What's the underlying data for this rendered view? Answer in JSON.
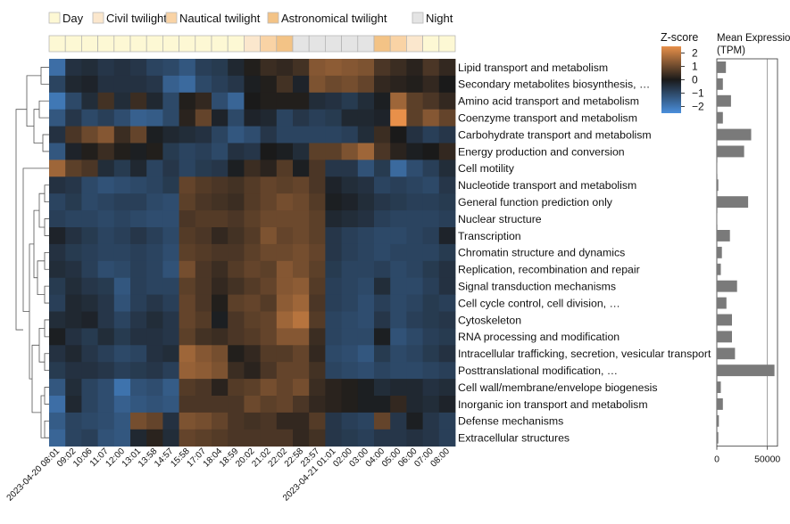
{
  "chart_data": {
    "type": "heatmap",
    "legend": {
      "items": [
        {
          "label": "Day",
          "color": "#fdf8d4"
        },
        {
          "label": "Civil twilight",
          "color": "#fbe7cd"
        },
        {
          "label": "Nautical twilight",
          "color": "#f9d3a5"
        },
        {
          "label": "Astronomical twilight",
          "color": "#f3c386"
        },
        {
          "label": "Night",
          "color": "#e4e4e4"
        }
      ]
    },
    "time_labels": [
      "2023-04-20 08:01",
      "09:02",
      "10:06",
      "11:07",
      "12:00",
      "13:01",
      "13:58",
      "14:57",
      "15:58",
      "17:07",
      "18:04",
      "18:59",
      "20:02",
      "21:02",
      "22:02",
      "22:58",
      "23:57",
      "2023-04-21 01:01",
      "02:00",
      "03:00",
      "04:00",
      "05:00",
      "06:00",
      "07:00",
      "08:00"
    ],
    "phases": [
      "Day",
      "Day",
      "Day",
      "Day",
      "Day",
      "Day",
      "Day",
      "Day",
      "Day",
      "Day",
      "Day",
      "Day",
      "Civil twilight",
      "Nautical twilight",
      "Astronomical twilight",
      "Night",
      "Night",
      "Night",
      "Night",
      "Night",
      "Astronomical twilight",
      "Nautical twilight",
      "Civil twilight",
      "Day",
      "Day"
    ],
    "categories": [
      "Lipid transport and metabolism",
      "Secondary metabolites biosynthesis, …",
      "Amino acid transport and metabolism",
      "Coenzyme transport and metabolism",
      "Carbohydrate transport and metabolism",
      "Energy production and conversion",
      "Cell motility",
      "Nucleotide transport and metabolism",
      "General function prediction only",
      "Nuclear structure",
      "Transcription",
      "Chromatin structure and dynamics",
      "Replication, recombination and repair",
      "Signal transduction mechanisms",
      "Cell cycle control, cell division, …",
      "Cytoskeleton",
      "RNA processing and modification",
      "Intracellular trafficking, secretion, vesicular transport",
      "Posttranslational modification, …",
      "Cell wall/membrane/envelope biogenesis",
      "Inorganic ion transport and metabolism",
      "Defense mechanisms",
      "Extracellular structures"
    ],
    "zscores": [
      [
        -1.8,
        -0.5,
        -0.4,
        -0.6,
        -0.5,
        -0.6,
        -0.9,
        -1.0,
        -1.3,
        -0.8,
        -0.7,
        -0.3,
        0.1,
        0.4,
        0.3,
        0.5,
        1.3,
        1.4,
        1.3,
        1.2,
        0.6,
        0.4,
        0.2,
        0.6,
        0.3
      ],
      [
        -0.9,
        -0.3,
        -0.2,
        -0.5,
        -0.5,
        -0.5,
        -0.6,
        -1.5,
        -1.7,
        -1.0,
        -0.8,
        -0.6,
        -0.1,
        0.1,
        0.5,
        -0.2,
        1.2,
        1.0,
        1.1,
        0.9,
        0.3,
        0.2,
        0.1,
        0.3,
        0.0
      ],
      [
        -2.0,
        -1.0,
        -0.4,
        0.5,
        -0.4,
        0.4,
        -0.3,
        -1.0,
        0.1,
        0.3,
        -1.1,
        -1.6,
        0.0,
        0.1,
        0.1,
        0.1,
        -0.4,
        -0.5,
        -0.7,
        -0.4,
        -0.1,
        1.6,
        0.8,
        0.6,
        0.3
      ],
      [
        -1.3,
        -0.6,
        -1.0,
        -0.8,
        -1.1,
        -1.5,
        -1.4,
        -1.0,
        0.2,
        0.9,
        -0.2,
        -1.0,
        -0.2,
        -0.3,
        -0.9,
        -0.6,
        -0.8,
        -0.7,
        -0.3,
        -0.3,
        -0.2,
        2.5,
        0.8,
        1.3,
        0.9
      ],
      [
        -0.5,
        0.6,
        1.0,
        1.3,
        0.4,
        0.9,
        -0.1,
        -0.3,
        -0.4,
        -0.5,
        -0.9,
        -1.3,
        -1.1,
        -0.6,
        -0.9,
        -0.9,
        -0.9,
        -0.9,
        -0.8,
        -0.4,
        0.4,
        0.0,
        -0.5,
        -0.8,
        -0.6
      ],
      [
        -1.3,
        -0.2,
        0.1,
        0.4,
        0.1,
        -0.1,
        0.1,
        -0.7,
        -0.9,
        -0.8,
        -1.0,
        -0.5,
        -0.6,
        0.0,
        -0.1,
        -0.4,
        0.8,
        0.8,
        1.2,
        1.6,
        0.6,
        0.2,
        -0.1,
        0.0,
        0.3
      ],
      [
        1.6,
        0.8,
        0.6,
        -0.4,
        -0.7,
        -0.3,
        -0.9,
        -0.6,
        -0.9,
        -0.7,
        -0.6,
        -0.1,
        0.4,
        0.2,
        0.7,
        -0.1,
        0.6,
        -0.6,
        -0.6,
        -1.2,
        -0.7,
        -1.7,
        -1.1,
        -0.8,
        -0.4
      ],
      [
        -0.5,
        -0.6,
        -1.0,
        -1.2,
        -1.1,
        -1.0,
        -0.9,
        -0.7,
        0.9,
        0.7,
        0.6,
        0.5,
        0.7,
        0.9,
        0.8,
        0.9,
        0.6,
        -0.2,
        -0.4,
        -0.5,
        -0.9,
        -0.8,
        -0.9,
        -1.0,
        -0.6
      ],
      [
        -0.9,
        -0.7,
        -1.0,
        -0.9,
        -0.8,
        -0.8,
        -1.0,
        -1.1,
        0.8,
        0.6,
        0.5,
        0.4,
        0.7,
        0.9,
        1.1,
        1.0,
        0.7,
        -0.1,
        -0.2,
        -0.4,
        -0.6,
        -0.7,
        -0.8,
        -0.8,
        -0.7
      ],
      [
        -0.8,
        -0.9,
        -0.9,
        -1.0,
        -0.9,
        -1.0,
        -1.1,
        -1.1,
        0.6,
        0.7,
        0.7,
        0.6,
        0.8,
        1.0,
        1.0,
        1.0,
        0.8,
        -0.3,
        -0.4,
        -0.5,
        -0.8,
        -0.9,
        -0.9,
        -0.9,
        -0.8
      ],
      [
        -0.2,
        -0.5,
        -0.7,
        -0.9,
        -0.8,
        -0.6,
        -0.8,
        -1.0,
        0.7,
        0.6,
        0.3,
        0.5,
        0.7,
        1.2,
        0.9,
        1.0,
        0.8,
        -0.6,
        -0.8,
        -0.9,
        -1.0,
        -1.0,
        -0.9,
        -0.8,
        -0.2
      ],
      [
        -0.5,
        -0.7,
        -0.8,
        -0.9,
        -0.9,
        -0.8,
        -0.9,
        -1.1,
        0.8,
        0.7,
        0.6,
        0.6,
        0.8,
        1.0,
        1.0,
        1.1,
        0.9,
        -0.6,
        -0.8,
        -0.9,
        -1.0,
        -0.9,
        -0.9,
        -0.9,
        -0.7
      ],
      [
        -0.4,
        -0.5,
        -0.8,
        -1.1,
        -1.0,
        -0.8,
        -0.9,
        -1.2,
        1.1,
        0.6,
        0.4,
        0.7,
        0.9,
        0.8,
        1.3,
        1.1,
        0.8,
        -0.7,
        -0.9,
        -0.9,
        -0.8,
        -1.0,
        -0.9,
        -0.7,
        -0.5
      ],
      [
        -0.7,
        -0.4,
        -0.6,
        -0.7,
        -1.3,
        -0.8,
        -0.9,
        -0.9,
        0.8,
        0.6,
        0.3,
        0.5,
        0.7,
        0.9,
        1.3,
        1.4,
        0.7,
        -0.8,
        -0.9,
        -1.0,
        -0.4,
        -1.0,
        -1.0,
        -0.8,
        -0.5
      ],
      [
        -0.8,
        -0.3,
        -0.4,
        -0.6,
        -1.2,
        -0.8,
        -0.6,
        -0.8,
        0.9,
        0.6,
        0.1,
        0.8,
        0.9,
        0.7,
        1.4,
        1.6,
        0.6,
        -0.8,
        -0.9,
        -1.1,
        -0.8,
        -1.0,
        -0.9,
        -0.7,
        -0.8
      ],
      [
        -0.4,
        -0.3,
        -0.2,
        -0.6,
        -0.9,
        -0.6,
        -0.4,
        -0.6,
        0.9,
        0.7,
        -0.1,
        0.6,
        0.8,
        0.9,
        1.6,
        1.9,
        0.7,
        -0.9,
        -1.0,
        -1.1,
        -0.6,
        -1.0,
        -0.8,
        -0.7,
        -0.6
      ],
      [
        -0.1,
        -0.5,
        -0.7,
        -0.4,
        -0.7,
        -0.5,
        -0.5,
        -0.6,
        0.8,
        0.5,
        0.4,
        0.6,
        0.7,
        0.9,
        1.3,
        1.3,
        0.4,
        -0.9,
        -1.0,
        -1.0,
        -0.1,
        -1.2,
        -1.0,
        -0.8,
        -0.7
      ],
      [
        -0.5,
        -0.3,
        -0.6,
        -0.8,
        -1.0,
        -0.9,
        -0.5,
        -0.4,
        1.6,
        1.3,
        1.1,
        0.1,
        0.3,
        0.7,
        0.7,
        0.9,
        0.3,
        -1.0,
        -1.1,
        -1.3,
        -0.7,
        -1.0,
        -0.9,
        -0.7,
        -0.5
      ],
      [
        -0.7,
        -0.5,
        -0.5,
        -0.6,
        -0.8,
        -0.7,
        -0.6,
        -0.8,
        1.5,
        1.4,
        1.2,
        0.4,
        0.2,
        0.6,
        0.9,
        0.9,
        0.5,
        -0.9,
        -1.0,
        -1.1,
        -0.9,
        -1.0,
        -1.0,
        -0.9,
        -0.8
      ],
      [
        -1.3,
        -0.4,
        -0.9,
        -1.1,
        -1.9,
        -1.2,
        -1.1,
        -1.4,
        0.7,
        0.6,
        0.2,
        0.7,
        0.8,
        1.1,
        0.9,
        1.1,
        0.4,
        0.2,
        0.1,
        -0.1,
        -0.4,
        -0.3,
        -0.3,
        -0.5,
        -0.4
      ],
      [
        -1.8,
        -0.3,
        -0.9,
        -1.1,
        -1.5,
        -1.3,
        -1.2,
        -1.3,
        0.6,
        0.6,
        0.6,
        0.6,
        1.0,
        0.8,
        0.9,
        0.6,
        0.3,
        0.2,
        0.1,
        -0.1,
        -0.1,
        0.3,
        -0.3,
        -0.4,
        -0.2
      ],
      [
        -1.4,
        -0.9,
        -1.0,
        -1.1,
        -1.3,
        1.1,
        0.9,
        -0.5,
        1.2,
        1.1,
        0.9,
        0.6,
        0.5,
        0.6,
        0.3,
        0.3,
        0.7,
        -0.6,
        -0.8,
        -0.9,
        0.9,
        -0.6,
        -0.1,
        -0.6,
        -0.8
      ],
      [
        -1.6,
        -0.9,
        -0.8,
        -1.2,
        -1.3,
        -0.3,
        0.2,
        -0.4,
        0.9,
        0.8,
        0.7,
        0.6,
        0.6,
        0.6,
        0.6,
        0.3,
        0.5,
        -0.6,
        -0.7,
        -0.8,
        -0.6,
        -0.6,
        -0.5,
        -0.6,
        -0.8
      ]
    ],
    "colorbar": {
      "title": "Z-score",
      "range": [
        -2.5,
        2.5
      ],
      "ticks": [
        2,
        1,
        0,
        -1,
        -2
      ],
      "low_color": "#4a8fdc",
      "mid_color": "#1a1a1a",
      "high_color": "#e8904a"
    },
    "bar_chart": {
      "title_line1": "Mean Expression",
      "title_line2": "(TPM)",
      "xlim": [
        0,
        60000
      ],
      "ticks": [
        0,
        50000
      ],
      "tick_labels": [
        "0",
        "50000"
      ],
      "values": [
        9000,
        6000,
        14000,
        6000,
        34000,
        27000,
        200,
        1500,
        31000,
        200,
        13000,
        5000,
        4000,
        20000,
        9500,
        15000,
        15000,
        18000,
        57000,
        4000,
        6000,
        2000,
        1500
      ],
      "bar_color": "#7a7a7a"
    }
  }
}
